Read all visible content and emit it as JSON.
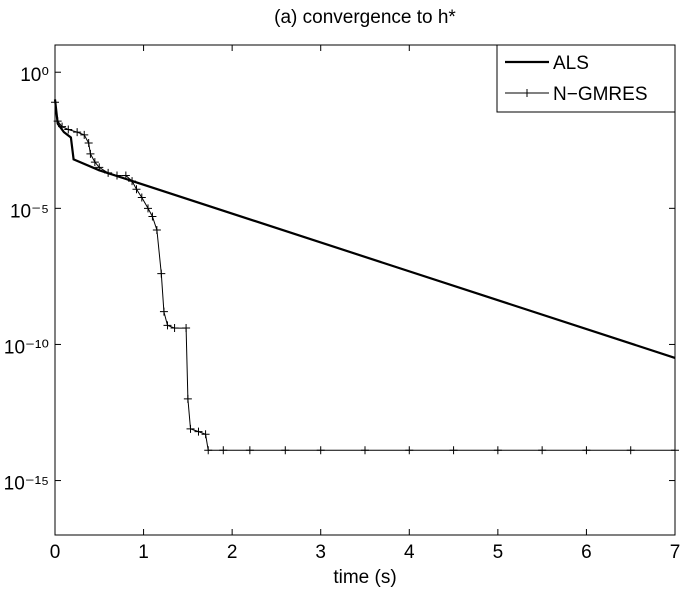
{
  "chart_data": {
    "type": "line",
    "title": "(a) convergence to h*",
    "x_label": "time (s)",
    "log_y": true,
    "xlim": [
      0,
      7
    ],
    "xticks": [
      0,
      1,
      2,
      3,
      4,
      5,
      6,
      7
    ],
    "ylim": [
      1e-17,
      10
    ],
    "yticks": [
      {
        "value": 1,
        "label": "10⁰"
      },
      {
        "value": 1e-05,
        "label": "10⁻⁵"
      },
      {
        "value": 1e-10,
        "label": "10⁻¹⁰"
      },
      {
        "value": 1e-15,
        "label": "10⁻¹⁵"
      }
    ],
    "legend": "upper right",
    "series": [
      {
        "name": "ALS",
        "color": "#000000",
        "marker": "none",
        "x": [
          0,
          0.03,
          0.1,
          0.18,
          0.21,
          0.5,
          7
        ],
        "values": [
          0.1,
          0.013,
          0.0063,
          0.004,
          0.00063,
          0.00025,
          3.2e-11
        ]
      },
      {
        "name": "N−GMRES",
        "color": "#000000",
        "marker": "+",
        "x": [
          0,
          0.03,
          0.08,
          0.15,
          0.25,
          0.33,
          0.38,
          0.4,
          0.45,
          0.5,
          0.6,
          0.7,
          0.8,
          0.87,
          0.92,
          0.98,
          1.05,
          1.1,
          1.15,
          1.2,
          1.23,
          1.27,
          1.35,
          1.48,
          1.5,
          1.53,
          1.62,
          1.7,
          1.73,
          1.9,
          2.2,
          2.6,
          3.0,
          3.5,
          4.0,
          4.5,
          5.0,
          5.5,
          6.0,
          6.5,
          7.0
        ],
        "values": [
          0.079,
          0.016,
          0.01,
          0.0079,
          0.0063,
          0.005,
          0.0025,
          0.001,
          0.0005,
          0.00032,
          0.0002,
          0.00016,
          0.00016,
          0.0001,
          5e-05,
          2.5e-05,
          1e-05,
          5e-06,
          1.6e-06,
          4e-08,
          1.6e-09,
          5e-10,
          4e-10,
          4e-10,
          1e-12,
          7.9e-14,
          6.3e-14,
          5e-14,
          1.3e-14,
          1.3e-14,
          1.3e-14,
          1.3e-14,
          1.3e-14,
          1.3e-14,
          1.3e-14,
          1.3e-14,
          1.3e-14,
          1.3e-14,
          1.3e-14,
          1.3e-14,
          1.3e-14
        ]
      }
    ]
  }
}
